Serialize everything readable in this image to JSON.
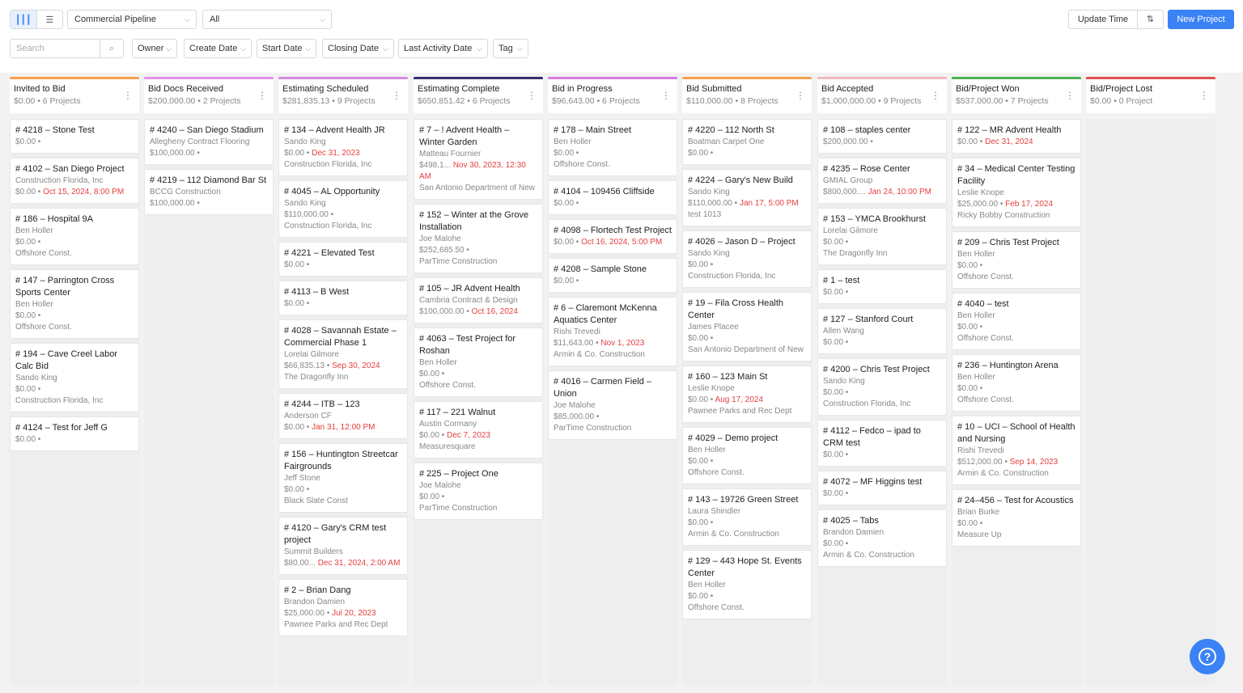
{
  "toolbar": {
    "pipeline": "Commercial Pipeline",
    "filter_all": "All",
    "update_time": "Update Time",
    "new_project": "New Project",
    "search_placeholder": "Search",
    "filters": [
      "Owner",
      "Create Date",
      "Start Date",
      "Closing Date",
      "Last Activity Date",
      "Tag"
    ]
  },
  "columns": [
    {
      "name": "Invited to Bid",
      "summary": "$0.00 • 6 Projects",
      "color": "#f6a04d",
      "cards": [
        {
          "title": "# 4218 – Stone Test",
          "lines": [],
          "amount": "$0.00 •",
          "date": ""
        },
        {
          "title": "# 4102 – San Diego Project",
          "lines": [
            "Construction Florida, Inc"
          ],
          "amount": "$0.00 •",
          "date": "Oct 15, 2024, 8:00 PM"
        },
        {
          "title": "# 186 – Hospital 9A",
          "lines": [
            "Ben Holler",
            "Offshore Const."
          ],
          "amount": "$0.00 •",
          "date": ""
        },
        {
          "title": "# 147 – Parrington Cross Sports Center",
          "lines": [
            "Ben Holler",
            "Offshore Const."
          ],
          "amount": "$0.00 •",
          "date": ""
        },
        {
          "title": "# 194 – Cave Creel Labor Calc Bid",
          "lines": [
            "Sando King",
            "Construction Florida, Inc"
          ],
          "amount": "$0.00 •",
          "date": ""
        },
        {
          "title": "# 4124 – Test for Jeff G",
          "lines": [],
          "amount": "$0.00 •",
          "date": ""
        }
      ]
    },
    {
      "name": "Bid Docs Received",
      "summary": "$200,000.00 • 2 Projects",
      "color": "#e58fe8",
      "cards": [
        {
          "title": "# 4240 – San Diego Stadium",
          "lines": [
            "Allegheny Contract Flooring"
          ],
          "amount": "$100,000.00 •",
          "date": ""
        },
        {
          "title": "# 4219 – 112 Diamond Bar St",
          "lines": [
            "BCCG Construction"
          ],
          "amount": "$100,000.00 •",
          "date": ""
        }
      ]
    },
    {
      "name": "Estimating Scheduled",
      "summary": "$281,835.13 • 9 Projects",
      "color": "#d68ae0",
      "cards": [
        {
          "title": "# 134 – Advent Health JR",
          "lines": [
            "Sando King",
            "Construction Florida, Inc"
          ],
          "amount": "$0.00 •",
          "date": "Dec 31, 2023"
        },
        {
          "title": "# 4045 – AL Opportunity",
          "lines": [
            "Sando King",
            "Construction Florida, Inc"
          ],
          "amount": "$110,000.00 •",
          "date": ""
        },
        {
          "title": "# 4221 – Elevated Test",
          "lines": [],
          "amount": "$0.00 •",
          "date": ""
        },
        {
          "title": "# 4113 – B West",
          "lines": [],
          "amount": "$0.00 •",
          "date": ""
        },
        {
          "title": "# 4028 – Savannah Estate – Commercial Phase 1",
          "lines": [
            "Lorelai Gilmore",
            "The Dragonfly Inn"
          ],
          "amount": "$66,835.13 •",
          "date": "Sep 30, 2024"
        },
        {
          "title": "# 4244 – ITB – 123",
          "lines": [
            "Anderson CF"
          ],
          "amount": "$0.00 •",
          "date": "Jan 31, 12:00 PM"
        },
        {
          "title": "# 156 – Huntington Streetcar Fairgrounds",
          "lines": [
            "Jeff Stone",
            "Black Slate Const"
          ],
          "amount": "$0.00 •",
          "date": ""
        },
        {
          "title": "# 4120 – Gary's CRM test project",
          "lines": [
            "Summit Builders"
          ],
          "amount": "$80,00...",
          "date": "Dec 31, 2024, 2:00 AM"
        },
        {
          "title": "# 2 – Brian Dang",
          "lines": [
            "Brandon Damien",
            "Pawnee Parks and Rec Dept"
          ],
          "amount": "$25,000.00 •",
          "date": "Jul 20, 2023"
        }
      ]
    },
    {
      "name": "Estimating Complete",
      "summary": "$650,851.42 • 6 Projects",
      "color": "#3a2a6e",
      "cards": [
        {
          "title": "# 7 – ! Advent Health – Winter Garden",
          "lines": [
            "Matteau Fournier",
            "San Antonio Department of New Development"
          ],
          "amount": "$498,1...",
          "date": "Nov 30, 2023, 12:30 AM"
        },
        {
          "title": "# 152 – Winter at the Grove Installation",
          "lines": [
            "Joe Malohe",
            "ParTime Construction"
          ],
          "amount": "$252,685.50 •",
          "date": ""
        },
        {
          "title": "# 105 – JR Advent Health",
          "lines": [
            "Cambria Contract & Design"
          ],
          "amount": "$100,000.00 •",
          "date": "Oct 16, 2024"
        },
        {
          "title": "# 4063 – Test Project for Roshan",
          "lines": [
            "Ben Holler",
            "Offshore Const."
          ],
          "amount": "$0.00 •",
          "date": ""
        },
        {
          "title": "# 117 – 221 Walnut",
          "lines": [
            "Austin Cormany",
            "Measuresquare"
          ],
          "amount": "$0.00 •",
          "date": "Dec 7, 2023"
        },
        {
          "title": "# 225 – Project One",
          "lines": [
            "Joe Malohe",
            "ParTime Construction"
          ],
          "amount": "$0.00 •",
          "date": ""
        }
      ]
    },
    {
      "name": "Bid in Progress",
      "summary": "$96,643.00 • 6 Projects",
      "color": "#d77ce0",
      "cards": [
        {
          "title": "# 178 – Main Street",
          "lines": [
            "Ben Holler",
            "Offshore Const."
          ],
          "amount": "$0.00 •",
          "date": ""
        },
        {
          "title": "# 4104 – 109456 Cliffside",
          "lines": [],
          "amount": "$0.00 •",
          "date": ""
        },
        {
          "title": "# 4098 – Flortech Test Project",
          "lines": [],
          "amount": "$0.00 •",
          "date": "Oct 16, 2024, 5:00 PM"
        },
        {
          "title": "# 4208 – Sample Stone",
          "lines": [],
          "amount": "$0.00 •",
          "date": ""
        },
        {
          "title": "# 6 – Claremont McKenna Aquatics Center",
          "lines": [
            "Rishi Trevedi",
            "Armin & Co. Construction"
          ],
          "amount": "$11,643.00 •",
          "date": "Nov 1, 2023"
        },
        {
          "title": "# 4016 – Carmen Field – Union",
          "lines": [
            "Joe Malohe",
            "ParTime Construction"
          ],
          "amount": "$85,000.00 •",
          "date": ""
        }
      ]
    },
    {
      "name": "Bid Submitted",
      "summary": "$110,000.00 • 8 Projects",
      "color": "#f6a04d",
      "cards": [
        {
          "title": "# 4220 – 112 North St",
          "lines": [
            "Boatman Carpet One"
          ],
          "amount": "$0.00 •",
          "date": ""
        },
        {
          "title": "# 4224 – Gary's New Build",
          "lines": [
            "Sando King",
            "test 1013"
          ],
          "amount": "$110,000.00 •",
          "date": "Jan 17, 5:00 PM"
        },
        {
          "title": "# 4026 – Jason D – Project",
          "lines": [
            "Sando King",
            "Construction Florida, Inc"
          ],
          "amount": "$0.00 •",
          "date": ""
        },
        {
          "title": "# 19 – Fila Cross Health Center",
          "lines": [
            "James Placee",
            "San Antonio Department of New Development"
          ],
          "amount": "$0.00 •",
          "date": ""
        },
        {
          "title": "# 160 – 123 Main St",
          "lines": [
            "Leslie Knope",
            "Pawnee Parks and Rec Dept"
          ],
          "amount": "$0.00 •",
          "date": "Aug 17, 2024"
        },
        {
          "title": "# 4029 – Demo project",
          "lines": [
            "Ben Holler",
            "Offshore Const."
          ],
          "amount": "$0.00 •",
          "date": ""
        },
        {
          "title": "# 143 – 19726 Green Street",
          "lines": [
            "Laura Shindler",
            "Armin & Co. Construction"
          ],
          "amount": "$0.00 •",
          "date": ""
        },
        {
          "title": "# 129 – 443 Hope St. Events Center",
          "lines": [
            "Ben Holler",
            "Offshore Const."
          ],
          "amount": "$0.00 •",
          "date": ""
        }
      ]
    },
    {
      "name": "Bid Accepted",
      "summary": "$1,000,000.00 • 9 Projects",
      "color": "#f0b8c0",
      "cards": [
        {
          "title": "# 108 – staples center",
          "lines": [],
          "amount": "$200,000.00 •",
          "date": ""
        },
        {
          "title": "# 4235 – Rose Center",
          "lines": [
            "GMIAL Group"
          ],
          "amount": "$800,000....",
          "date": "Jan 24, 10:00 PM"
        },
        {
          "title": "# 153 – YMCA Brookhurst",
          "lines": [
            "Lorelai Gilmore",
            "The Dragonfly Inn"
          ],
          "amount": "$0.00 •",
          "date": ""
        },
        {
          "title": "# 1 – test",
          "lines": [],
          "amount": "$0.00 •",
          "date": ""
        },
        {
          "title": "# 127 – Stanford Court",
          "lines": [
            "Allen Wang"
          ],
          "amount": "$0.00 •",
          "date": ""
        },
        {
          "title": "# 4200 – Chris Test Project",
          "lines": [
            "Sando King",
            "Construction Florida, Inc"
          ],
          "amount": "$0.00 •",
          "date": ""
        },
        {
          "title": "# 4112 – Fedco – ipad to CRM test",
          "lines": [],
          "amount": "$0.00 •",
          "date": ""
        },
        {
          "title": "# 4072 – MF Higgins test",
          "lines": [],
          "amount": "$0.00 •",
          "date": ""
        },
        {
          "title": "# 4025 – Tabs",
          "lines": [
            "Brandon Damien",
            "Armin & Co. Construction"
          ],
          "amount": "$0.00 •",
          "date": ""
        }
      ]
    },
    {
      "name": "Bid/Project Won",
      "summary": "$537,000.00 • 7 Projects",
      "color": "#4caf50",
      "cards": [
        {
          "title": "# 122 – MR Advent Health",
          "lines": [],
          "amount": "$0.00 •",
          "date": "Dec 31, 2024"
        },
        {
          "title": "# 34 – Medical Center Testing Facility",
          "lines": [
            "Leslie Knope",
            "Ricky Bobby Construction"
          ],
          "amount": "$25,000.00 •",
          "date": "Feb 17, 2024"
        },
        {
          "title": "# 209 – Chris Test Project",
          "lines": [
            "Ben Holler",
            "Offshore Const."
          ],
          "amount": "$0.00 •",
          "date": ""
        },
        {
          "title": "# 4040 – test",
          "lines": [
            "Ben Holler",
            "Offshore Const."
          ],
          "amount": "$0.00 •",
          "date": ""
        },
        {
          "title": "# 236 – Huntington Arena",
          "lines": [
            "Ben Holler",
            "Offshore Const."
          ],
          "amount": "$0.00 •",
          "date": ""
        },
        {
          "title": "# 10 – UCI – School of Health and Nursing",
          "lines": [
            "Rishi Trevedi",
            "Armin & Co. Construction"
          ],
          "amount": "$512,000.00 •",
          "date": "Sep 14, 2023"
        },
        {
          "title": "# 24–456 – Test for Acoustics",
          "lines": [
            "Brian Burke",
            "Measure Up"
          ],
          "amount": "$0.00 •",
          "date": ""
        }
      ]
    },
    {
      "name": "Bid/Project Lost",
      "summary": "$0.00 • 0 Project",
      "color": "#e05050",
      "cards": []
    }
  ]
}
